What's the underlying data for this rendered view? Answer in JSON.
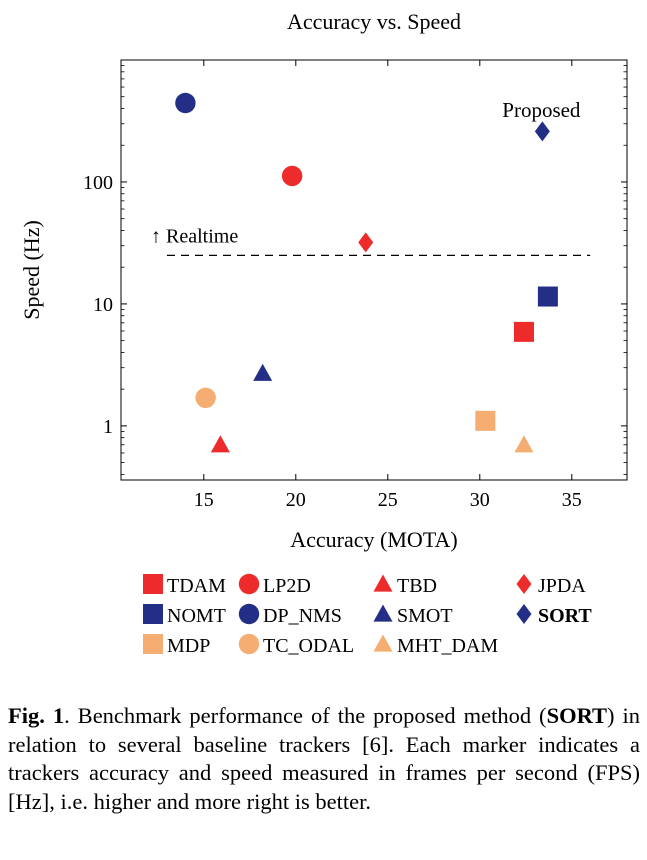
{
  "chart_data": {
    "type": "scatter",
    "title": "Accuracy vs. Speed",
    "xlabel": "Accuracy (MOTA)",
    "ylabel": "Speed (Hz)",
    "x_scale": "linear",
    "y_scale": "log",
    "xlim": [
      10.5,
      38
    ],
    "ylim": [
      0.36,
      1000
    ],
    "x_ticks": [
      15,
      20,
      25,
      30,
      35
    ],
    "y_ticks": [
      1,
      10,
      100
    ],
    "x_tick_labels": [
      "15",
      "20",
      "25",
      "30",
      "35"
    ],
    "y_tick_labels": [
      "1",
      "10",
      "100"
    ],
    "grid": false,
    "legend_position": "bottom",
    "colors": {
      "red": "#ee2b2b",
      "navy": "#232f87",
      "orange": "#f5ad72"
    },
    "series": [
      {
        "name": "TDAM",
        "marker": "square",
        "color": "#ee2b2b",
        "x": 32.4,
        "y": 5.9
      },
      {
        "name": "LP2D",
        "marker": "circle",
        "color": "#ee2b2b",
        "x": 19.8,
        "y": 112
      },
      {
        "name": "TBD",
        "marker": "triangle",
        "color": "#ee2b2b",
        "x": 15.9,
        "y": 0.7
      },
      {
        "name": "JPDA",
        "marker": "diamond",
        "color": "#ee2b2b",
        "x": 23.8,
        "y": 32
      },
      {
        "name": "NOMT",
        "marker": "square",
        "color": "#232f87",
        "x": 33.7,
        "y": 11.5
      },
      {
        "name": "DP_NMS",
        "marker": "circle",
        "color": "#232f87",
        "x": 14.0,
        "y": 444
      },
      {
        "name": "SMOT",
        "marker": "triangle",
        "color": "#232f87",
        "x": 18.2,
        "y": 2.7
      },
      {
        "name": "SORT",
        "marker": "diamond",
        "color": "#232f87",
        "x": 33.4,
        "y": 260,
        "bold": true
      },
      {
        "name": "MDP",
        "marker": "square",
        "color": "#f5ad72",
        "x": 30.3,
        "y": 1.1
      },
      {
        "name": "TC_ODAL",
        "marker": "circle",
        "color": "#f5ad72",
        "x": 15.1,
        "y": 1.7
      },
      {
        "name": "MHT_DAM",
        "marker": "triangle",
        "color": "#f5ad72",
        "x": 32.4,
        "y": 0.7
      }
    ],
    "reference_line": {
      "label": "↑ Realtime",
      "y": 25,
      "x_range": [
        13,
        36
      ],
      "style": "dashed"
    },
    "annotations": [
      {
        "text": "Proposed",
        "x": 33.4,
        "y": 390
      }
    ]
  },
  "caption": {
    "figure_label": "Fig. 1",
    "text_before": ".   Benchmark performance of the proposed method (",
    "method_name": "SORT",
    "text_after": ") in relation to several baseline trackers [6].  Each marker indicates a trackers accuracy and speed measured in frames per second (FPS) [Hz], i.e.  higher and more right is better."
  }
}
